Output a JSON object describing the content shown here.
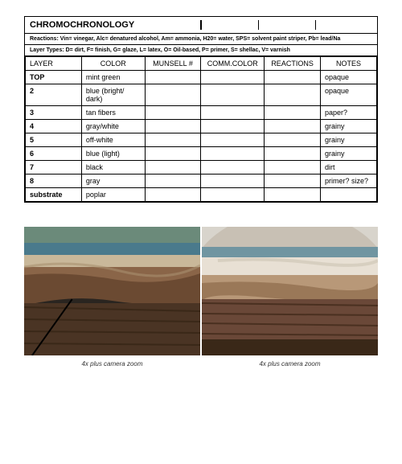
{
  "table": {
    "title": "CHROMOCHRONOLOGY",
    "reactions_note": "Reactions: Vin= vinegar, Alc= denatured alcohol, Am= ammonia, H20= water, SPS= solvent paint striper, Pb= lead/Na",
    "layertypes_note": "Layer Types: D= dirt, F= finish, G= glaze, L= latex, O= Oil-based, P= primer, S= shellac, V= varnish",
    "headers": {
      "layer": "LAYER",
      "color": "COLOR",
      "munsell": "MUNSELL #",
      "commcolor": "COMM.COLOR",
      "reactions": "REACTIONS",
      "notes": "NOTES"
    },
    "rows": [
      {
        "layer": "TOP",
        "color": "mint green",
        "munsell": "",
        "commcolor": "",
        "reactions": "",
        "notes": "opaque",
        "bold": true
      },
      {
        "layer": "2",
        "color": "blue (bright/ dark)",
        "munsell": "",
        "commcolor": "",
        "reactions": "",
        "notes": "opaque",
        "bold": true
      },
      {
        "layer": "3",
        "color": "tan fibers",
        "munsell": "",
        "commcolor": "",
        "reactions": "",
        "notes": "paper?",
        "bold": true
      },
      {
        "layer": "4",
        "color": "gray/white",
        "munsell": "",
        "commcolor": "",
        "reactions": "",
        "notes": "grainy",
        "bold": true
      },
      {
        "layer": "5",
        "color": "off-white",
        "munsell": "",
        "commcolor": "",
        "reactions": "",
        "notes": "grainy",
        "bold": true
      },
      {
        "layer": "6",
        "color": "blue (light)",
        "munsell": "",
        "commcolor": "",
        "reactions": "",
        "notes": "grainy",
        "bold": true
      },
      {
        "layer": "7",
        "color": "black",
        "munsell": "",
        "commcolor": "",
        "reactions": "",
        "notes": "dirt",
        "bold": true
      },
      {
        "layer": "8",
        "color": "gray",
        "munsell": "",
        "commcolor": "",
        "reactions": "",
        "notes": "primer? size?",
        "bold": true
      },
      {
        "layer": "substrate",
        "color": "poplar",
        "munsell": "",
        "commcolor": "",
        "reactions": "",
        "notes": "",
        "bold": true
      }
    ]
  },
  "images": {
    "caption1": "4x plus camera zoom",
    "caption2": "4x plus camera zoom"
  }
}
